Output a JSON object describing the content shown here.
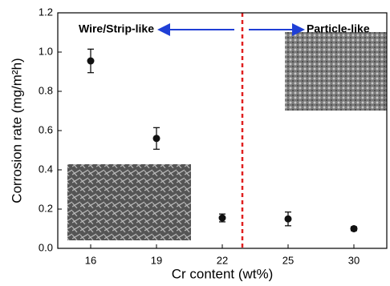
{
  "chart_data": {
    "type": "scatter",
    "x_label": "Cr content (wt%)",
    "y_label": "Corrosion rate (mg/m²h)",
    "annotations": [
      "Wire/Strip-like",
      "Particle-like"
    ],
    "categories": [
      "16",
      "19",
      "22",
      "25",
      "30"
    ],
    "values": [
      0.955,
      0.56,
      0.155,
      0.15,
      0.1
    ],
    "errors": [
      0.06,
      0.055,
      0.02,
      0.035,
      0.01
    ],
    "color": "#111111",
    "ylim": [
      0,
      1.2
    ],
    "yticks": [
      {
        "value": 0,
        "label": "0.0"
      },
      0.2,
      0.4,
      0.6,
      0.8,
      {
        "value": 1,
        "label": "1.0"
      },
      1.2
    ]
  }
}
